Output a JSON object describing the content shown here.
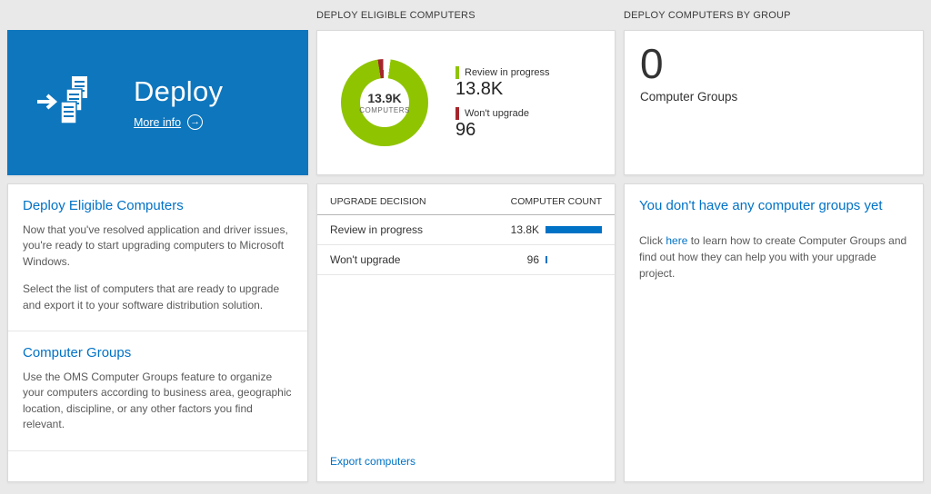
{
  "colors": {
    "tile_blue": "#0e76bd",
    "link_blue": "#0072c6",
    "green": "#8fc400",
    "red": "#a4262c",
    "bar_blue": "#0072c6"
  },
  "icons": {
    "arrow_right": "→"
  },
  "columns": {
    "left": {
      "tile": {
        "title": "Deploy",
        "more_info": "More info"
      },
      "sections": [
        {
          "heading": "Deploy Eligible Computers",
          "paragraphs": [
            "Now that you've resolved application and driver issues, you're ready to start upgrading computers to Microsoft Windows.",
            "Select the list of computers that are ready to upgrade and export it to your software distribution solution."
          ]
        },
        {
          "heading": "Computer Groups",
          "paragraphs": [
            "Use the OMS Computer Groups feature to organize your computers according to business area, geographic location, discipline, or any other factors you find relevant."
          ]
        }
      ]
    },
    "middle": {
      "header": "DEPLOY ELIGIBLE COMPUTERS",
      "donut": {
        "value": "13.9K",
        "label": "COMPUTERS"
      },
      "legend": [
        {
          "label": "Review in progress",
          "value": "13.8K",
          "color": "#8fc400"
        },
        {
          "label": "Won't upgrade",
          "value": "96",
          "color": "#a4262c"
        }
      ],
      "table": {
        "columns": [
          "UPGRADE DECISION",
          "COMPUTER COUNT"
        ],
        "rows": [
          {
            "label": "Review in progress",
            "count": "13.8K",
            "bar_pct": 100
          },
          {
            "label": "Won't upgrade",
            "count": "96",
            "bar_pct": 3
          }
        ]
      },
      "footer_link": "Export computers"
    },
    "right": {
      "header": "DEPLOY COMPUTERS BY GROUP",
      "big_number": "0",
      "big_label": "Computer Groups",
      "empty_heading": "You don't have any computer groups yet",
      "empty_text_before": "Click ",
      "empty_link": "here",
      "empty_text_after": " to learn how to create Computer Groups and find out how they can help you with your upgrade project."
    }
  },
  "chart_data": {
    "type": "pie",
    "title": "Deploy Eligible Computers",
    "center_total": "13.9K",
    "center_label": "COMPUTERS",
    "categories": [
      "Review in progress",
      "Won't upgrade"
    ],
    "values": [
      13800,
      96
    ],
    "colors": [
      "#8fc400",
      "#a4262c"
    ],
    "legend_position": "right"
  }
}
